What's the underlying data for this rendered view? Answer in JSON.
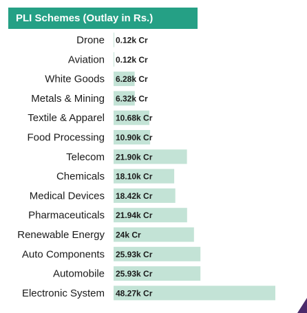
{
  "colors": {
    "title_bg": "#25a085",
    "title_text": "#ffffff",
    "bar_fill": "#c3e3d6",
    "accent_corner": "#4b2a6b"
  },
  "chart_data": {
    "type": "bar",
    "orientation": "horizontal",
    "title": "PLI Schemes (Outlay in Rs.)",
    "xlabel": "",
    "ylabel": "",
    "unit": "k Cr",
    "grid": false,
    "legend": "none",
    "xlim": [
      0,
      48.27
    ],
    "categories": [
      "Drone",
      "Aviation",
      "White Goods",
      "Metals & Mining",
      "Textile & Apparel",
      "Food Processing",
      "Telecom",
      "Chemicals",
      "Medical Devices",
      "Pharmaceuticals",
      "Renewable Energy",
      "Auto Components",
      "Automobile",
      "Electronic System"
    ],
    "values": [
      0.12,
      0.12,
      6.28,
      6.32,
      10.68,
      10.9,
      21.9,
      18.1,
      18.42,
      21.94,
      24,
      25.93,
      25.93,
      48.27
    ],
    "value_labels": [
      "0.12k Cr",
      "0.12k Cr",
      "6.28k Cr",
      "6.32k Cr",
      "10.68k Cr",
      "10.90k Cr",
      "21.90k Cr",
      "18.10k Cr",
      "18.42k Cr",
      "21.94k Cr",
      "24k Cr",
      "25.93k Cr",
      "25.93k Cr",
      "48.27k Cr"
    ]
  }
}
